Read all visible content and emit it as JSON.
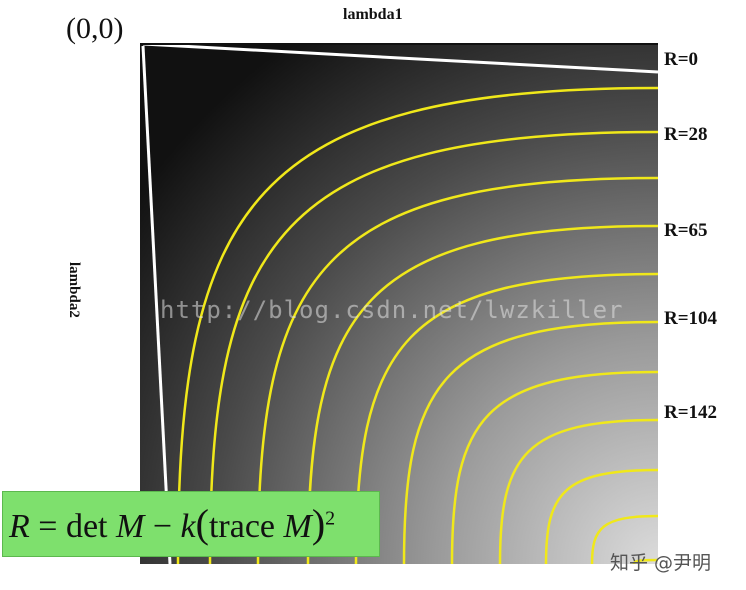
{
  "origin_label": "(0,0)",
  "axis_top_label": "lambda1",
  "axis_left_label": "lambda2",
  "r_labels": [
    "R=0",
    "R=28",
    "R=65",
    "R=104",
    "R=142"
  ],
  "watermark": "http://blog.csdn.net/lwzkiller",
  "formula": {
    "lhs": "R",
    "equals": " = ",
    "det": "det ",
    "M1": "M",
    "minus": " − ",
    "k": "k",
    "open": "(",
    "trace": "trace ",
    "M2": "M",
    "close": ")",
    "exp": "2"
  },
  "credit": "知乎 @尹明",
  "colors": {
    "contour": "#f0e81a",
    "formula_bg": "#7ee06d",
    "edge_lines": "#ffffff"
  }
}
